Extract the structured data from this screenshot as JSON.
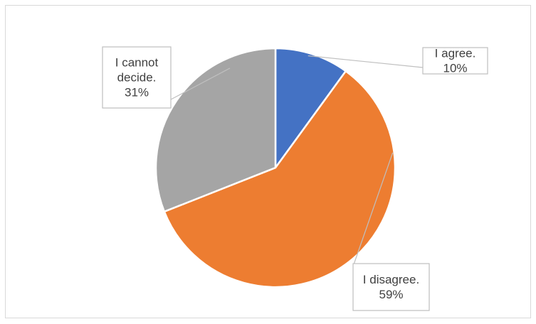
{
  "chart_data": {
    "type": "pie",
    "title": "",
    "legend": "none",
    "slices": [
      {
        "label": "I agree.",
        "value": 10,
        "value_label": "10%",
        "color": "#4472C4"
      },
      {
        "label": "I disagree.",
        "value": 59,
        "value_label": "59%",
        "color": "#ED7D31"
      },
      {
        "label": "I cannot decide.",
        "value": 31,
        "value_label": "31%",
        "color": "#A5A5A5"
      }
    ],
    "data_label_lines": [
      [
        "I agree.",
        "10%"
      ],
      [
        "I disagree.",
        "59%"
      ],
      [
        "I cannot",
        "decide.",
        "31%"
      ]
    ]
  }
}
